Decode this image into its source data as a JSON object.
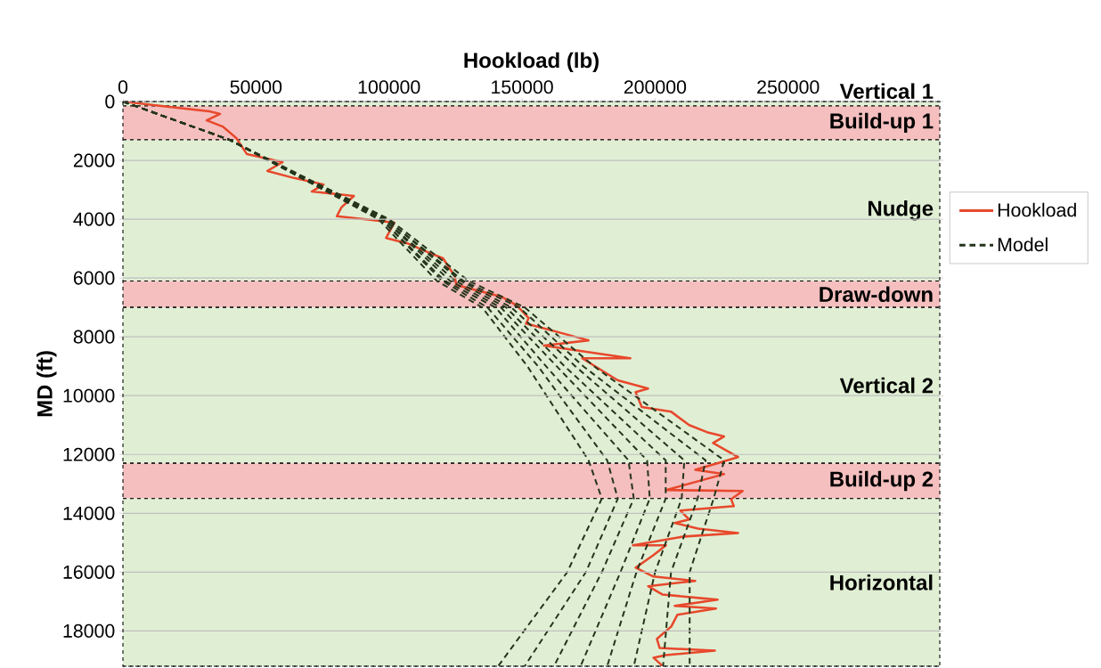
{
  "chart_data": {
    "type": "line",
    "xlabel": "Hookload (lb)",
    "ylabel": "MD (ft)",
    "xlim": [
      0,
      307000
    ],
    "ylim": [
      19200,
      0
    ],
    "xticks": [
      0,
      50000,
      100000,
      150000,
      200000,
      250000
    ],
    "yticks": [
      0,
      2000,
      4000,
      6000,
      8000,
      10000,
      12000,
      14000,
      16000,
      18000
    ],
    "grid": "y",
    "legend": "right",
    "marker": "none",
    "bands": [
      {
        "axis": "y",
        "from": 0,
        "to": 150,
        "label": "Vertical 1",
        "color": "#e0efd4"
      },
      {
        "axis": "y",
        "from": 150,
        "to": 1300,
        "label": "Build-up 1",
        "color": "#f5bfbf"
      },
      {
        "axis": "y",
        "from": 1300,
        "to": 6100,
        "label": "Nudge",
        "color": "#e0efd4"
      },
      {
        "axis": "y",
        "from": 6100,
        "to": 7000,
        "label": "Draw-down",
        "color": "#f5bfbf"
      },
      {
        "axis": "y",
        "from": 7000,
        "to": 12300,
        "label": "Vertical 2",
        "color": "#e0efd4"
      },
      {
        "axis": "y",
        "from": 12300,
        "to": 13500,
        "label": "Build-up 2",
        "color": "#f5bfbf"
      },
      {
        "axis": "y",
        "from": 13500,
        "to": 19200,
        "label": "Horizontal",
        "color": "#e0efd4"
      }
    ],
    "series": [
      {
        "name": "Hookload",
        "color": "#e8482c",
        "line_style": "solid",
        "x": [
          0,
          17400,
          32500,
          36500,
          31500,
          37500,
          42600,
          46600,
          60000,
          54300,
          64300,
          75400,
          71000,
          86800,
          82100,
          80400,
          93500,
          102000,
          98900,
          106900,
          114600,
          120300,
          124700,
          125300,
          142400,
          148100,
          152500,
          151500,
          175000,
          158200,
          190700,
          172600,
          186000,
          197400,
          192700,
          195000,
          206100,
          212800,
          219500,
          225900,
          221800,
          231200,
          215100,
          225900,
          204100,
          232900,
          228600,
          229600,
          209500,
          212800,
          207400,
          216200,
          231200,
          210800,
          191700,
          204100,
          199400,
          192700,
          199400,
          215100,
          197400,
          202700,
          223500,
          207400,
          222900,
          208400,
          206100,
          200700,
          201700,
          222500,
          204100,
          199400,
          202700
        ],
        "values": [
          0,
          180,
          330,
          420,
          640,
          850,
          1240,
          1790,
          2060,
          2360,
          2600,
          2820,
          3060,
          3210,
          3600,
          3900,
          4030,
          4120,
          4640,
          4820,
          5120,
          5330,
          5940,
          6240,
          6640,
          6940,
          7360,
          7550,
          8120,
          8300,
          8730,
          8730,
          9480,
          9760,
          9880,
          10390,
          10550,
          11000,
          11240,
          11390,
          11610,
          12090,
          12520,
          12670,
          13210,
          13240,
          13520,
          13760,
          13910,
          14210,
          14330,
          14520,
          14670,
          14790,
          15090,
          15090,
          15420,
          15850,
          16150,
          16300,
          16480,
          16760,
          16940,
          17150,
          17240,
          17450,
          17850,
          18270,
          18580,
          18670,
          18820,
          18910,
          19180
        ]
      },
      {
        "name": "Model",
        "color": "#25351c",
        "line_style": "dashed",
        "x": [
          0,
          40000,
          96000,
          118000,
          135000,
          152000,
          175000,
          180000,
          167000,
          141000
        ],
        "values": [
          0,
          1300,
          4000,
          6100,
          7000,
          9000,
          12200,
          13500,
          16000,
          19200
        ]
      },
      {
        "color": "#25351c",
        "line_style": "dashed",
        "x": [
          0,
          40000,
          97000,
          120000,
          137000,
          156000,
          182000,
          186000,
          174000,
          151000
        ],
        "values": [
          0,
          1300,
          4000,
          6100,
          7000,
          9000,
          12200,
          13500,
          16000,
          19200
        ]
      },
      {
        "color": "#25351c",
        "line_style": "dashed",
        "x": [
          0,
          40000,
          97000,
          121000,
          140000,
          159000,
          190000,
          192000,
          180000,
          162000
        ],
        "values": [
          0,
          1300,
          4000,
          6100,
          7000,
          9000,
          12200,
          13500,
          16000,
          19200
        ]
      },
      {
        "color": "#25351c",
        "line_style": "dashed",
        "x": [
          0,
          40000,
          98000,
          123000,
          142000,
          163000,
          197000,
          198000,
          187000,
          172000
        ],
        "values": [
          0,
          1300,
          4000,
          6100,
          7000,
          9000,
          12200,
          13500,
          16000,
          19200
        ]
      },
      {
        "color": "#25351c",
        "line_style": "dashed",
        "x": [
          0,
          40000,
          98000,
          125000,
          144000,
          166000,
          204000,
          204000,
          193000,
          182000
        ],
        "values": [
          0,
          1300,
          4000,
          6100,
          7000,
          9000,
          12200,
          13500,
          16000,
          19200
        ]
      },
      {
        "color": "#25351c",
        "line_style": "dashed",
        "x": [
          0,
          40000,
          99000,
          127000,
          146000,
          170000,
          211000,
          210000,
          200000,
          192000
        ],
        "values": [
          0,
          1300,
          4000,
          6100,
          7000,
          9000,
          12200,
          13500,
          16000,
          19200
        ]
      },
      {
        "color": "#25351c",
        "line_style": "dashed",
        "x": [
          0,
          40000,
          99000,
          128000,
          149000,
          173000,
          219000,
          216000,
          206000,
          203000
        ],
        "values": [
          0,
          1300,
          4000,
          6100,
          7000,
          9000,
          12200,
          13500,
          16000,
          19200
        ]
      },
      {
        "color": "#25351c",
        "line_style": "dashed",
        "x": [
          0,
          40000,
          100000,
          130000,
          151000,
          177000,
          226000,
          222000,
          213000,
          213000
        ],
        "values": [
          0,
          1300,
          4000,
          6100,
          7000,
          9000,
          12200,
          13500,
          16000,
          19200
        ]
      }
    ]
  }
}
